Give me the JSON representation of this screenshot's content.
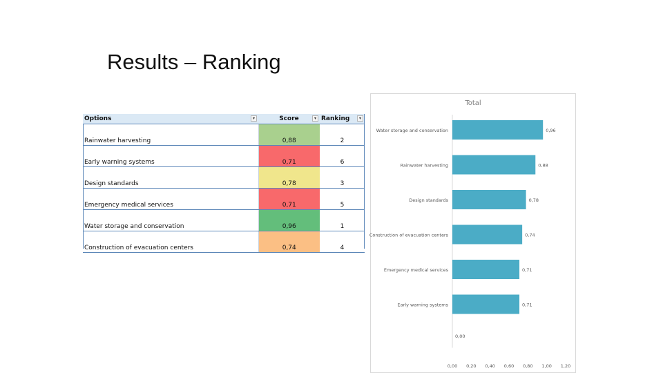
{
  "slide": {
    "title": "Results – Ranking"
  },
  "table": {
    "headers": {
      "options": "Options",
      "score": "Score",
      "ranking": "Ranking"
    },
    "filter_icon": "▾",
    "rows": [
      {
        "option": "Rainwater harvesting",
        "score": "0,88",
        "ranking": "2",
        "color": "#a9d08e"
      },
      {
        "option": "Early warning systems",
        "score": "0,71",
        "ranking": "6",
        "color": "#f8696b"
      },
      {
        "option": "Design standards",
        "score": "0,78",
        "ranking": "3",
        "color": "#f0e68c"
      },
      {
        "option": "Emergency medical services",
        "score": "0,71",
        "ranking": "5",
        "color": "#f8696b"
      },
      {
        "option": "Water storage and conservation",
        "score": "0,96",
        "ranking": "1",
        "color": "#63be7b"
      },
      {
        "option": "Construction of evacuation centers",
        "score": "0,74",
        "ranking": "4",
        "color": "#fbbf84"
      }
    ]
  },
  "chart_data": {
    "type": "bar",
    "orientation": "horizontal",
    "title": "Total",
    "categories": [
      "Water storage and conservation",
      "Rainwater harvesting",
      "Design standards",
      "Construction of evacuation centers",
      "Emergency medical services",
      "Early warning systems",
      ""
    ],
    "values": [
      0.96,
      0.88,
      0.78,
      0.74,
      0.71,
      0.71,
      0.0
    ],
    "value_labels": [
      "0,96",
      "0,88",
      "0,78",
      "0,74",
      "0,71",
      "0,71",
      "0,00"
    ],
    "xticks": [
      "0,00",
      "0,20",
      "0,40",
      "0,60",
      "0,80",
      "1,00",
      "1,20"
    ],
    "xlim": [
      0,
      1.2
    ],
    "bar_color": "#4bacc6",
    "grid": false,
    "legend": "none"
  }
}
